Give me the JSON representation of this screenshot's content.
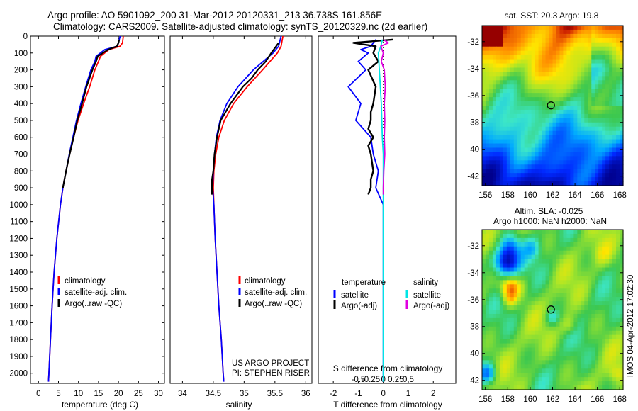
{
  "header": {
    "line1": "Argo profile: AO 5901092_200 31-Mar-2012 20120331_213 36.738S 161.856E",
    "line2": "Climatology: CARS2009. Satellite-adjusted climatology: synTS_20120329.nc (2d earlier)"
  },
  "colors": {
    "climatology": "#ff0000",
    "satellite": "#0000ff",
    "argo": "#000000",
    "sat_salinity": "#00e5e5",
    "argo_salinity": "#e000e0"
  },
  "chart_data": [
    {
      "type": "line",
      "id": "temperature",
      "xlabel": "temperature (deg C)",
      "ylabel": "",
      "xlim": [
        -2,
        31.5
      ],
      "ylim": [
        0,
        2060
      ],
      "xticks": [
        0,
        5,
        10,
        15,
        20,
        25,
        30
      ],
      "yticks": [
        0,
        100,
        200,
        300,
        400,
        500,
        600,
        700,
        800,
        900,
        1000,
        1100,
        1200,
        1300,
        1400,
        1500,
        1600,
        1700,
        1800,
        1900,
        2000
      ],
      "legend": [
        "climatology",
        "satellite-adj. clim.",
        "Argo(..raw -QC)"
      ],
      "series": [
        {
          "name": "climatology",
          "depth": [
            0,
            40,
            60,
            80,
            120,
            150,
            200,
            300,
            400,
            500,
            600,
            700,
            800,
            900,
            1000,
            1200,
            1400,
            1600,
            1800,
            2000,
            2050
          ],
          "values": [
            21.2,
            21.0,
            20.4,
            17.6,
            15.5,
            15.0,
            14.1,
            12.8,
            11.3,
            9.9,
            8.8,
            7.8,
            6.9,
            6.1,
            5.5,
            4.6,
            3.9,
            3.4,
            3.0,
            2.6,
            2.5
          ]
        },
        {
          "name": "satellite-adj. clim.",
          "depth": [
            0,
            40,
            60,
            80,
            120,
            150,
            200,
            300,
            400,
            500,
            600,
            700,
            800,
            900,
            1000,
            1200,
            1400,
            1600,
            1800,
            2000,
            2050
          ],
          "values": [
            20.4,
            20.0,
            19.7,
            16.6,
            14.4,
            14.1,
            13.1,
            11.8,
            10.6,
            9.5,
            8.6,
            7.7,
            6.9,
            6.1,
            5.5,
            4.6,
            3.9,
            3.4,
            3.0,
            2.6,
            2.5
          ]
        },
        {
          "name": "Argo(..raw -QC)",
          "depth": [
            20,
            40,
            60,
            80,
            120,
            150,
            200,
            300,
            400,
            500,
            600,
            700,
            800,
            900
          ],
          "values": [
            20.2,
            20.0,
            19.6,
            17.4,
            14.8,
            14.4,
            13.5,
            12.0,
            10.9,
            9.7,
            8.8,
            7.8,
            6.9,
            6.1
          ]
        }
      ]
    },
    {
      "type": "line",
      "id": "salinity",
      "xlabel": "salinity",
      "xlim": [
        33.8,
        36.1
      ],
      "ylim": [
        0,
        2060
      ],
      "xticks": [
        34,
        34.5,
        35,
        35.5,
        36
      ],
      "legend": [
        "climatology",
        "satellite-adj. clim.",
        "Argo(..raw -QC)"
      ],
      "annotation": [
        "US ARGO PROJECT",
        "PI: STEPHEN RISER"
      ],
      "series": [
        {
          "name": "climatology",
          "depth": [
            0,
            60,
            100,
            200,
            300,
            400,
            500,
            600,
            700,
            800,
            900,
            1000,
            1200,
            1400,
            1600,
            1800,
            2000,
            2050
          ],
          "values": [
            35.63,
            35.6,
            35.54,
            35.3,
            35.05,
            34.83,
            34.68,
            34.59,
            34.54,
            34.51,
            34.5,
            34.51,
            34.53,
            34.56,
            34.59,
            34.63,
            34.66,
            34.67
          ]
        },
        {
          "name": "satellite-adj. clim.",
          "depth": [
            0,
            60,
            100,
            200,
            300,
            400,
            500,
            600,
            700,
            800,
            900,
            1000,
            1200,
            1400,
            1600,
            1800,
            2000,
            2050
          ],
          "values": [
            35.6,
            35.56,
            35.47,
            35.15,
            34.9,
            34.72,
            34.61,
            34.55,
            34.52,
            34.5,
            34.49,
            34.51,
            34.53,
            34.56,
            34.59,
            34.63,
            34.66,
            34.67
          ]
        },
        {
          "name": "Argo(..raw -QC)",
          "depth": [
            40,
            60,
            100,
            150,
            200,
            250,
            300,
            400,
            500,
            600,
            700,
            800,
            850,
            900,
            940
          ],
          "values": [
            35.56,
            35.52,
            35.44,
            35.35,
            35.22,
            35.12,
            34.98,
            34.78,
            34.62,
            34.56,
            34.52,
            34.5,
            34.48,
            34.48,
            34.48
          ]
        }
      ]
    },
    {
      "type": "line",
      "id": "difference",
      "xlabel": "T difference from climatology",
      "xlabel_top": "S difference from climatology",
      "xlim": [
        -2.6,
        2.9
      ],
      "ylim": [
        0,
        2060
      ],
      "xticks": [
        -2,
        -1,
        0,
        1,
        2
      ],
      "xtick_labels": [
        "-2",
        "-1",
        "0",
        "1",
        "2"
      ],
      "s_ticks": [
        -0.5,
        -0.25,
        0,
        0.25,
        0.5
      ],
      "s_tick_labels": [
        "-0.5",
        "-0.25",
        "0",
        "0.25",
        "0.5"
      ],
      "legend_headers": [
        "temperature",
        "salinity"
      ],
      "legend": [
        "satellite",
        "Argo(-adj)",
        "satellite",
        "Argo(-adj)"
      ],
      "series": [
        {
          "name": "T satellite",
          "depth": [
            20,
            60,
            80,
            100,
            150,
            200,
            300,
            400,
            500,
            600,
            700,
            800,
            900,
            1000,
            1100,
            1200,
            1400,
            1600,
            1800,
            2000,
            2050
          ],
          "values": [
            -0.3,
            -0.5,
            -0.9,
            -0.6,
            -1.0,
            -0.7,
            -1.4,
            -0.9,
            -1.1,
            -0.5,
            -0.4,
            -0.2,
            -0.3,
            0.0,
            0.0,
            0.0,
            0.0,
            0.0,
            0.0,
            0.0,
            0.0
          ]
        },
        {
          "name": "T Argo(-adj)",
          "depth": [
            20,
            40,
            60,
            100,
            150,
            200,
            300,
            400,
            450,
            500,
            550,
            600,
            650,
            700,
            800,
            850,
            900,
            940
          ],
          "values": [
            0.4,
            -1.2,
            -0.3,
            -0.4,
            -0.2,
            -0.6,
            -0.3,
            -0.4,
            -0.5,
            -0.5,
            -0.6,
            -0.4,
            -0.6,
            -0.5,
            -0.4,
            -0.5,
            -0.5,
            -0.6
          ]
        },
        {
          "name": "S satellite",
          "depth": [
            20,
            60,
            100,
            200,
            300,
            400,
            500,
            600,
            700,
            800,
            900,
            1000,
            1200,
            1400,
            1600,
            1800,
            2000,
            2050
          ],
          "values": [
            -0.02,
            -0.05,
            -0.1,
            -0.08,
            -0.06,
            -0.04,
            -0.03,
            -0.02,
            0.0,
            0.0,
            0.0,
            0.0,
            0.0,
            0.0,
            0.0,
            0.0,
            0.0,
            0.0
          ]
        },
        {
          "name": "S Argo(-adj)",
          "depth": [
            20,
            40,
            60,
            100,
            150,
            200,
            300,
            400,
            500,
            600,
            700,
            800,
            900,
            940
          ],
          "values": [
            0.0,
            0.1,
            -0.05,
            0.0,
            -0.04,
            0.02,
            0.04,
            0.02,
            0.03,
            0.02,
            0.03,
            0.01,
            0.0,
            0.0
          ]
        }
      ]
    },
    {
      "type": "heatmap",
      "id": "sst-map",
      "title": "sat. SST: 20.3 Argo: 19.8",
      "xlim": [
        155.7,
        168.3
      ],
      "ylim": [
        -42.7,
        -30.8
      ],
      "xticks": [
        156,
        158,
        160,
        162,
        164,
        166,
        168
      ],
      "yticks": [
        -32,
        -34,
        -36,
        -38,
        -40,
        -42
      ],
      "marker": {
        "lon": 161.856,
        "lat": -36.738
      }
    },
    {
      "type": "heatmap",
      "id": "sla-map",
      "title1": "Altim. SLA: -0.025",
      "title2": "Argo h1000: NaN h2000: NaN",
      "xlim": [
        155.7,
        168.3
      ],
      "ylim": [
        -42.7,
        -30.8
      ],
      "xticks": [
        156,
        158,
        160,
        162,
        164,
        166,
        168
      ],
      "yticks": [
        -32,
        -34,
        -36,
        -38,
        -40,
        -42
      ],
      "marker": {
        "lon": 161.856,
        "lat": -36.738
      }
    }
  ],
  "footer": {
    "side_label": "IMOS 04-Apr-2012 17:02:30"
  }
}
